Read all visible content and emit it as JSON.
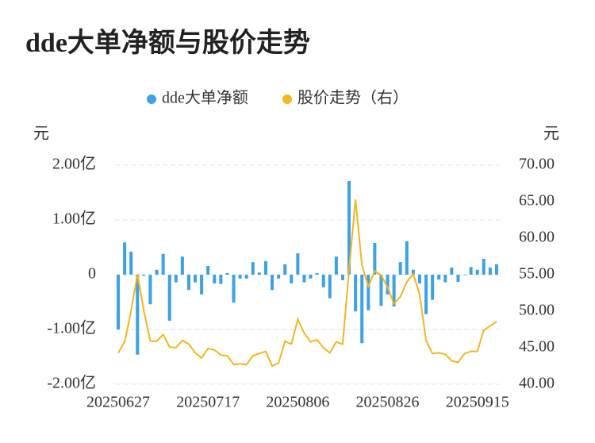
{
  "chart_data": {
    "type": "bar-line",
    "title": "dde大单净额与股价走势",
    "ylabel": "元",
    "y2label": "元",
    "categories": [
      "20250627",
      null,
      null,
      null,
      null,
      null,
      null,
      null,
      null,
      null,
      null,
      null,
      null,
      null,
      "20250717",
      null,
      null,
      null,
      null,
      null,
      null,
      null,
      null,
      null,
      null,
      null,
      null,
      null,
      "20250806",
      null,
      null,
      null,
      null,
      null,
      null,
      null,
      null,
      null,
      null,
      null,
      null,
      null,
      "20250826",
      null,
      null,
      null,
      null,
      null,
      null,
      null,
      null,
      null,
      null,
      null,
      null,
      null,
      "20250915",
      null,
      null,
      null
    ],
    "series": [
      {
        "name": "dde大单净额",
        "color": "#3ba1e8",
        "type": "bar",
        "values": [
          -1.0,
          0.59,
          0.42,
          -1.46,
          -0.02,
          -0.54,
          0.09,
          0.38,
          -0.84,
          -0.14,
          0.33,
          -0.28,
          -0.14,
          -0.36,
          0.16,
          -0.16,
          -0.17,
          0.03,
          -0.51,
          -0.07,
          -0.07,
          0.23,
          0.04,
          0.25,
          -0.28,
          -0.07,
          0.19,
          -0.16,
          0.39,
          -0.14,
          -0.07,
          0.03,
          -0.23,
          -0.43,
          0.33,
          -0.1,
          1.71,
          -0.67,
          -1.25,
          -0.65,
          0.58,
          -0.57,
          -0.36,
          -0.58,
          0.23,
          0.61,
          0.09,
          -0.16,
          -0.72,
          -0.46,
          -0.09,
          -0.14,
          0.13,
          -0.13,
          -0.01,
          0.14,
          0.09,
          0.29,
          0.13,
          0.19
        ]
      },
      {
        "name": "股价走势（右）",
        "color": "#f5b51c",
        "type": "line",
        "axis": "y2",
        "values": [
          44.3,
          45.8,
          50.0,
          55.1,
          50.0,
          45.9,
          45.9,
          46.8,
          45.1,
          45.0,
          46.0,
          45.5,
          44.3,
          43.6,
          44.9,
          44.7,
          44.0,
          43.9,
          42.7,
          42.8,
          42.7,
          43.9,
          44.2,
          44.5,
          42.5,
          42.9,
          45.9,
          45.5,
          48.9,
          47.0,
          45.8,
          46.1,
          45.0,
          44.3,
          45.8,
          45.5,
          55.7,
          65.3,
          56.3,
          53.4,
          55.5,
          54.9,
          53.3,
          51.0,
          52.0,
          54.0,
          55.1,
          52.3,
          46.0,
          44.2,
          44.3,
          44.1,
          43.2,
          43.0,
          44.2,
          44.5,
          44.5,
          47.4,
          48.0,
          48.6
        ]
      }
    ],
    "ylim": [
      -2,
      2
    ],
    "yticks": [
      {
        "value": -2,
        "label": "-2.00亿"
      },
      {
        "value": -1,
        "label": "-1.00亿"
      },
      0,
      {
        "value": 1,
        "label": "1.00亿"
      },
      {
        "value": 2,
        "label": "2.00亿"
      }
    ],
    "y2lim": [
      40,
      70
    ],
    "y2ticks": [
      {
        "value": 40,
        "label": "40.00"
      },
      {
        "value": 45,
        "label": "45.00"
      },
      {
        "value": 50,
        "label": "50.00"
      },
      {
        "value": 55,
        "label": "55.00"
      },
      {
        "value": 60,
        "label": "60.00"
      },
      {
        "value": 65,
        "label": "65.00"
      },
      {
        "value": 70,
        "label": "70.00"
      }
    ],
    "grid": true
  }
}
